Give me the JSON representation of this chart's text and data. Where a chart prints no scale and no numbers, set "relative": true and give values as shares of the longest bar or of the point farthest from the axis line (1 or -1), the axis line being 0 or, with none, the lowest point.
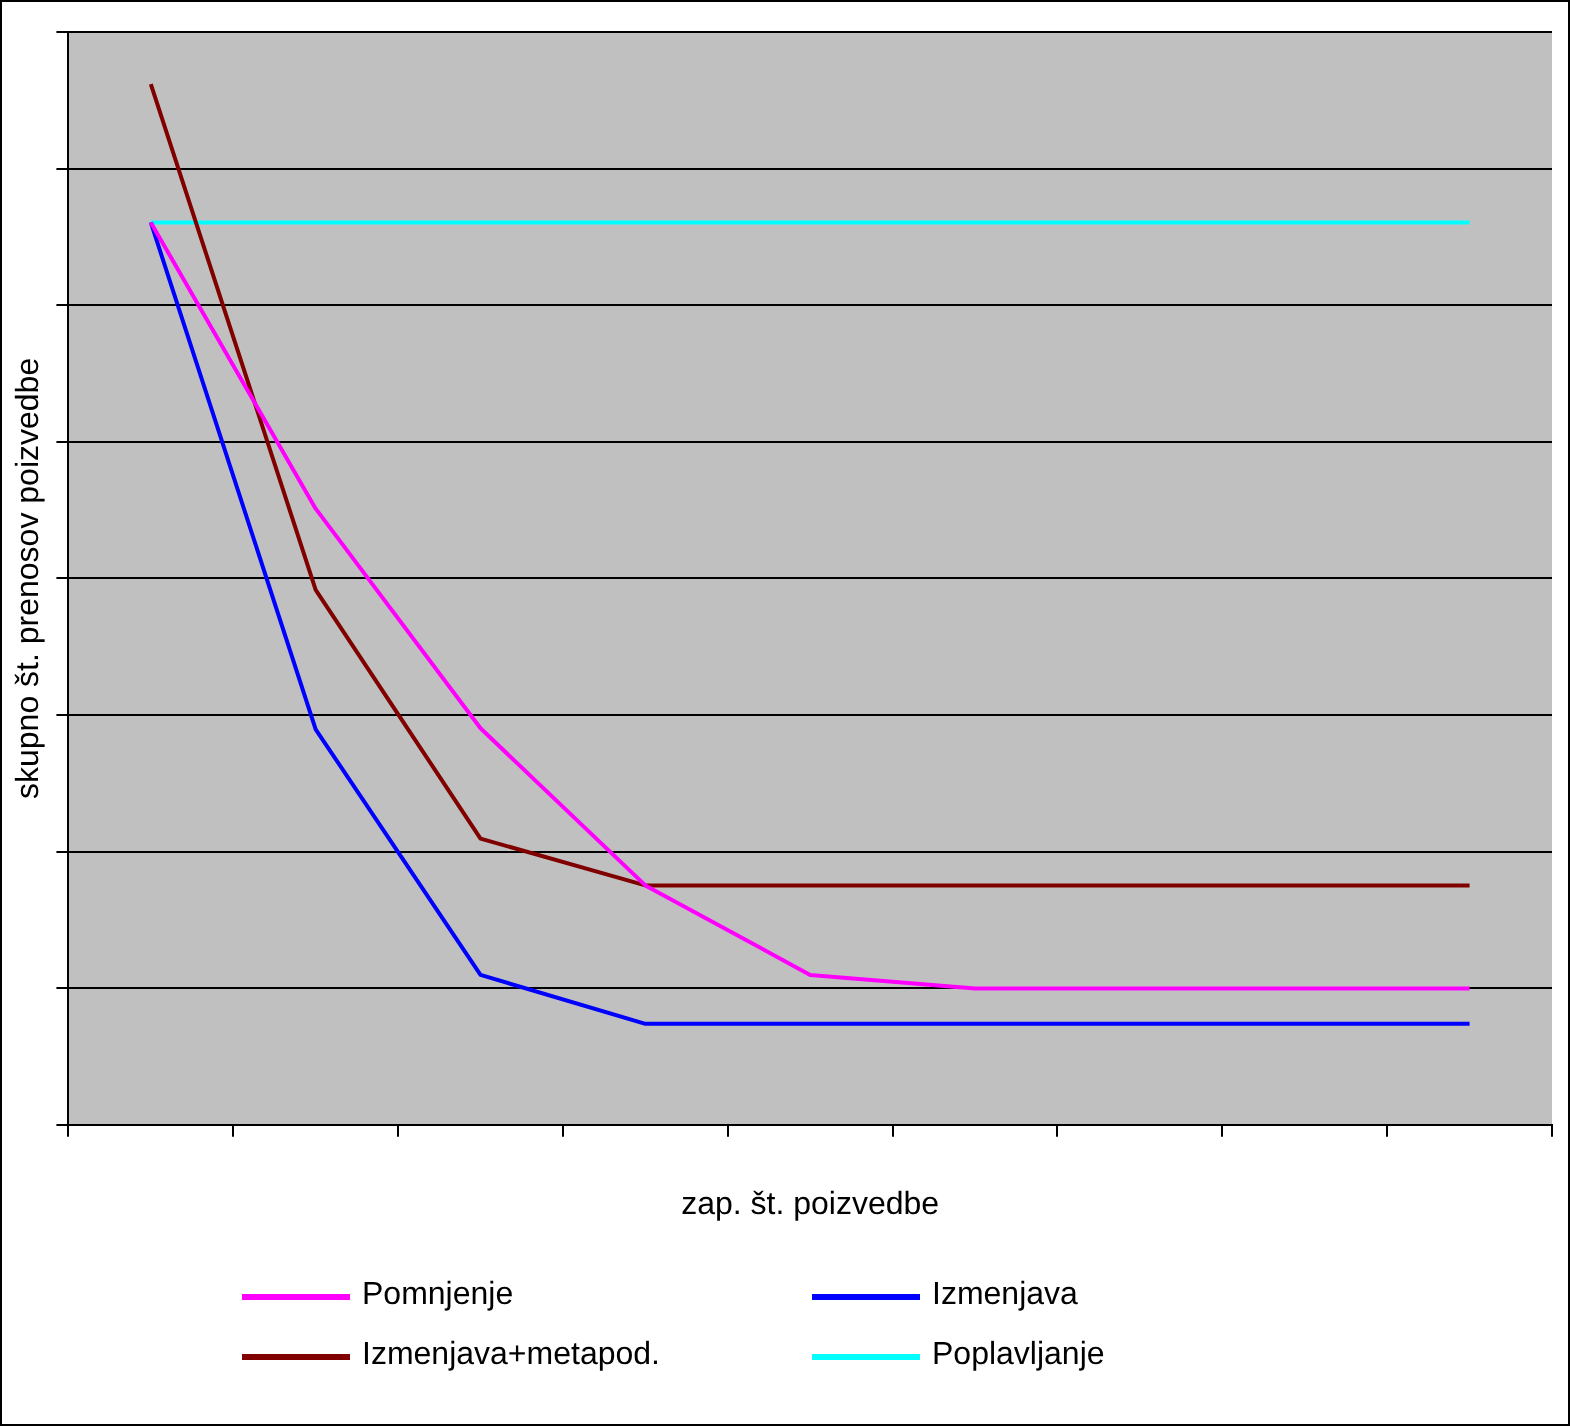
{
  "chart_data": {
    "type": "line",
    "xlabel": "zap. št. poizvedbe",
    "ylabel": "skupno št. prenosov poizvedbe",
    "relative": true,
    "grid": "y",
    "legend": "bottom",
    "marker": "none",
    "line_style": "solid",
    "categories": [
      null,
      null,
      null,
      null,
      null,
      null,
      null,
      null,
      null
    ],
    "series": [
      {
        "name": "Pomnjenje",
        "color": "#ff00ff",
        "values": [
          0.867,
          0.592,
          0.381,
          0.23,
          0.144,
          0.131,
          0.131,
          0.131,
          0.131
        ]
      },
      {
        "name": "Izmenjava",
        "color": "#0000ff",
        "values": [
          0.867,
          0.38,
          0.144,
          0.097,
          0.097,
          0.097,
          0.097,
          0.097,
          0.097
        ]
      },
      {
        "name": "Izmenjava+metapod.",
        "color": "#800000",
        "values": [
          1,
          0.514,
          0.275,
          0.23,
          0.23,
          0.23,
          0.23,
          0.23,
          0.23
        ]
      },
      {
        "name": "Poplavljanje",
        "color": "#00ffff",
        "values": [
          0.867,
          0.867,
          0.867,
          0.867,
          0.867,
          0.867,
          0.867,
          0.867,
          0.867
        ]
      }
    ]
  }
}
